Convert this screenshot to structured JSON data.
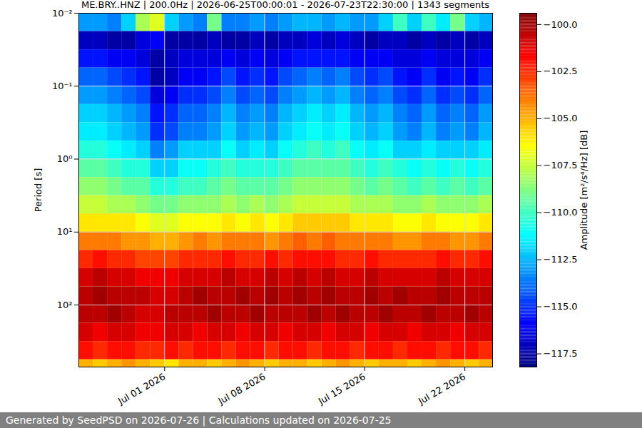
{
  "chart_data": {
    "type": "heatmap",
    "title": "ME.BRY..HNZ | 200.0Hz | 2026-06-25T00:00:01 - 2026-07-23T22:30:00 | 1343 segments",
    "caption": "Generated by SeedPSD on 2026-07-26 | Calculations updated on 2026-07-25",
    "y_label": "Period [s]",
    "log": "y",
    "grid": true,
    "xlim": [
      "2026-06-25T00:00:01",
      "2026-07-23T22:30:00"
    ],
    "xticks": [
      {
        "value": "2026-07-01",
        "label": "Jul 01 2026"
      },
      {
        "value": "2026-07-08",
        "label": "Jul 08 2026"
      },
      {
        "value": "2026-07-15",
        "label": "Jul 15 2026"
      },
      {
        "value": "2026-07-22",
        "label": "Jul 22 2026"
      }
    ],
    "ylim": [
      0.01,
      708
    ],
    "yticks": [
      {
        "value": 0.01,
        "label": "10⁻²"
      },
      {
        "value": 0.1,
        "label": "10⁻¹"
      },
      {
        "value": 1,
        "label": "10⁰"
      },
      {
        "value": 10,
        "label": "10¹"
      },
      {
        "value": 100,
        "label": "10²"
      }
    ],
    "x_bins": [
      "2026-06-25T00:00:01",
      "2026-06-26",
      "2026-06-27",
      "2026-06-28",
      "2026-06-29",
      "2026-06-30",
      "2026-07-01",
      "2026-07-02",
      "2026-07-03",
      "2026-07-04",
      "2026-07-05",
      "2026-07-06",
      "2026-07-07",
      "2026-07-08",
      "2026-07-09",
      "2026-07-10",
      "2026-07-11",
      "2026-07-12",
      "2026-07-13",
      "2026-07-14",
      "2026-07-15",
      "2026-07-16",
      "2026-07-17",
      "2026-07-18",
      "2026-07-19",
      "2026-07-20",
      "2026-07-21",
      "2026-07-22",
      "2026-07-23",
      "2026-07-23T22:30:00"
    ],
    "y_bins": [
      0.01,
      0.0178,
      0.0316,
      0.0562,
      0.1,
      0.178,
      0.316,
      0.562,
      1,
      1.78,
      3.16,
      5.62,
      10,
      17.8,
      31.6,
      56.2,
      100,
      178,
      316,
      562,
      708
    ],
    "values": [
      [
        -113,
        -113,
        -113.5,
        -112,
        -108,
        -107,
        -112,
        -113,
        -113.5,
        -109,
        -113.5,
        -113.5,
        -113,
        -113.5,
        -113,
        -112.5,
        -112.5,
        -113,
        -112.5,
        -113,
        -113,
        -112,
        -110,
        -112,
        -110,
        -111.5,
        -109,
        -112,
        -112.5
      ],
      [
        -117,
        -117,
        -117.5,
        -117.5,
        -116.5,
        -116,
        -117.5,
        -117.5,
        -117.5,
        -117,
        -117.5,
        -117.5,
        -117,
        -117.5,
        -117,
        -117,
        -116.5,
        -117,
        -116.5,
        -117,
        -117.5,
        -117,
        -117,
        -117.5,
        -117,
        -117.5,
        -117,
        -117.5,
        -117
      ],
      [
        -115.5,
        -115.5,
        -116,
        -116,
        -116.5,
        -117.5,
        -117,
        -116.5,
        -116.5,
        -116.5,
        -116,
        -116.5,
        -116,
        -116.5,
        -116,
        -115.5,
        -115.5,
        -115.5,
        -115.5,
        -116,
        -116,
        -116,
        -116.5,
        -116.5,
        -116,
        -116.5,
        -116.5,
        -116.5,
        -116
      ],
      [
        -114,
        -114,
        -114.5,
        -115,
        -115.5,
        -117.5,
        -117,
        -116,
        -116,
        -115.5,
        -114.5,
        -115.5,
        -115,
        -115.5,
        -114.5,
        -114,
        -113.5,
        -114,
        -113.5,
        -114.5,
        -115,
        -114.5,
        -115.5,
        -116,
        -115,
        -116,
        -115.5,
        -116,
        -115
      ],
      [
        -113,
        -113,
        -113.5,
        -114,
        -114.5,
        -116.5,
        -116,
        -115,
        -115,
        -114.5,
        -113.5,
        -114.5,
        -114,
        -114.5,
        -113.5,
        -113,
        -112.5,
        -113,
        -112.5,
        -113.5,
        -114,
        -113.5,
        -114.5,
        -115,
        -114,
        -115,
        -114.5,
        -115,
        -114
      ],
      [
        -112,
        -112,
        -112.5,
        -113,
        -113.5,
        -115.5,
        -115,
        -114,
        -114,
        -113.5,
        -112.5,
        -113.5,
        -113,
        -113.5,
        -112.5,
        -112,
        -111.5,
        -112,
        -111.5,
        -112.5,
        -113,
        -112.5,
        -113.5,
        -114,
        -113,
        -114,
        -113.5,
        -114,
        -113
      ],
      [
        -111.5,
        -111.5,
        -112,
        -112.5,
        -113,
        -115,
        -114.5,
        -113.5,
        -113.5,
        -113,
        -112,
        -113,
        -112.5,
        -113,
        -112,
        -111.5,
        -111,
        -111.5,
        -111,
        -112,
        -112.5,
        -112,
        -113,
        -113.5,
        -112.5,
        -113.5,
        -113,
        -113.5,
        -112.5
      ],
      [
        -110.5,
        -110.5,
        -111,
        -111.5,
        -112,
        -113.5,
        -113,
        -112,
        -112,
        -112,
        -111,
        -112,
        -111.5,
        -112,
        -111,
        -110.5,
        -110,
        -110.5,
        -110,
        -111,
        -111.5,
        -111,
        -112,
        -112,
        -111.5,
        -112,
        -112,
        -112,
        -111.5
      ],
      [
        -109.5,
        -109.5,
        -110,
        -110.5,
        -110.5,
        -112,
        -112,
        -111,
        -111,
        -110.5,
        -110,
        -110.5,
        -110.5,
        -110.5,
        -110,
        -109.5,
        -109.5,
        -109.5,
        -109.5,
        -110,
        -110.5,
        -110,
        -110.5,
        -111,
        -110.5,
        -111,
        -110.5,
        -111,
        -110.5
      ],
      [
        -108.5,
        -108.5,
        -109,
        -109.5,
        -109.5,
        -110.5,
        -110.5,
        -110,
        -110,
        -109.5,
        -109,
        -109.5,
        -109.5,
        -109.5,
        -109,
        -108.5,
        -108.5,
        -108.5,
        -108.5,
        -109,
        -109.5,
        -109,
        -109.5,
        -110,
        -109.5,
        -110,
        -109.5,
        -110,
        -109.5
      ],
      [
        -107.5,
        -107.5,
        -108,
        -108,
        -108.5,
        -109,
        -109,
        -108.5,
        -108.5,
        -108.5,
        -108,
        -108.5,
        -108,
        -108.5,
        -108,
        -107.5,
        -107.5,
        -107.5,
        -107.5,
        -108,
        -108,
        -108,
        -108.5,
        -108.5,
        -108,
        -108.5,
        -108.5,
        -108.5,
        -108
      ],
      [
        -106,
        -106,
        -106,
        -106,
        -106.5,
        -107,
        -107,
        -106.5,
        -106.5,
        -106.5,
        -106,
        -106.5,
        -106,
        -106.5,
        -106,
        -105.5,
        -105.5,
        -105.5,
        -105.5,
        -106,
        -106,
        -106,
        -106.5,
        -106.5,
        -106,
        -106.5,
        -106.5,
        -106.5,
        -106
      ],
      [
        -104,
        -104,
        -104,
        -104.5,
        -104.5,
        -105,
        -105,
        -104.5,
        -104,
        -104.5,
        -104,
        -104,
        -104,
        -104.5,
        -104,
        -103.5,
        -104,
        -103.5,
        -104,
        -104,
        -104,
        -104,
        -104.5,
        -104.5,
        -104,
        -104,
        -104.5,
        -104.5,
        -104
      ],
      [
        -102.5,
        -102,
        -102.5,
        -102.5,
        -103,
        -103,
        -103,
        -102.5,
        -102.5,
        -102.5,
        -102,
        -102.5,
        -102.5,
        -102,
        -102.5,
        -102,
        -102,
        -102,
        -102.5,
        -102.5,
        -102,
        -102.5,
        -102.5,
        -102.5,
        -102.5,
        -102,
        -102.5,
        -102.5,
        -102
      ],
      [
        -101,
        -100.5,
        -101,
        -101,
        -101.5,
        -101.5,
        -101.5,
        -101,
        -101,
        -101,
        -100.5,
        -101,
        -101,
        -100.5,
        -101,
        -100.5,
        -101,
        -100.5,
        -101,
        -101,
        -100.5,
        -101,
        -101,
        -101,
        -101,
        -100.5,
        -101,
        -101,
        -101
      ],
      [
        -100.5,
        -100,
        -100.5,
        -100.5,
        -100.5,
        -101,
        -101,
        -100.5,
        -100,
        -100.5,
        -100.5,
        -100,
        -100.5,
        -100,
        -100.5,
        -100,
        -100.5,
        -100,
        -100.5,
        -100.5,
        -100,
        -100.5,
        -100,
        -100.5,
        -100.5,
        -100,
        -100.5,
        -100.5,
        -100.5
      ],
      [
        -100.5,
        -100.5,
        -100,
        -100.5,
        -101,
        -101,
        -100.5,
        -100.5,
        -100.5,
        -100,
        -100.5,
        -100.5,
        -100,
        -100.5,
        -100.5,
        -100.5,
        -100,
        -100.5,
        -100,
        -100.5,
        -100.5,
        -100,
        -100.5,
        -100.5,
        -100,
        -100.5,
        -100.5,
        -100,
        -100.5
      ],
      [
        -101,
        -101.5,
        -101,
        -101,
        -101.5,
        -101.5,
        -101,
        -101,
        -101.5,
        -101,
        -101,
        -101.5,
        -101,
        -101,
        -101.5,
        -101,
        -101,
        -101.5,
        -101,
        -101,
        -101.5,
        -101,
        -101,
        -101.5,
        -101,
        -101,
        -101.5,
        -101,
        -101
      ],
      [
        -102,
        -102.5,
        -102,
        -102,
        -102.5,
        -102.5,
        -102,
        -102.5,
        -102,
        -102,
        -102.5,
        -102,
        -102,
        -102.5,
        -102,
        -102,
        -102.5,
        -102,
        -102,
        -102.5,
        -102,
        -102,
        -102.5,
        -102,
        -102,
        -102.5,
        -102,
        -102,
        -102.5
      ],
      [
        -105,
        -105.5,
        -105,
        -104.5,
        -105,
        -105.5,
        -106,
        -105,
        -105,
        -105.5,
        -105,
        -104.5,
        -105,
        -105.5,
        -105,
        -105,
        -105.5,
        -105,
        -104.5,
        -105,
        -105.5,
        -105,
        -105,
        -105.5,
        -105,
        -104.5,
        -105,
        -105.5,
        -105
      ]
    ],
    "colorbar": {
      "label": "Amplitude [m²/s⁴/Hz] [dB]",
      "lim": [
        -118.2,
        -99.4
      ],
      "ticks": [
        {
          "value": -100,
          "label": "−100.0"
        },
        {
          "value": -102.5,
          "label": "−102.5"
        },
        {
          "value": -105,
          "label": "−105.0"
        },
        {
          "value": -107.5,
          "label": "−107.5"
        },
        {
          "value": -110,
          "label": "−110.0"
        },
        {
          "value": -112.5,
          "label": "−112.5"
        },
        {
          "value": -115,
          "label": "−115.0"
        },
        {
          "value": -117.5,
          "label": "−117.5"
        }
      ]
    }
  }
}
